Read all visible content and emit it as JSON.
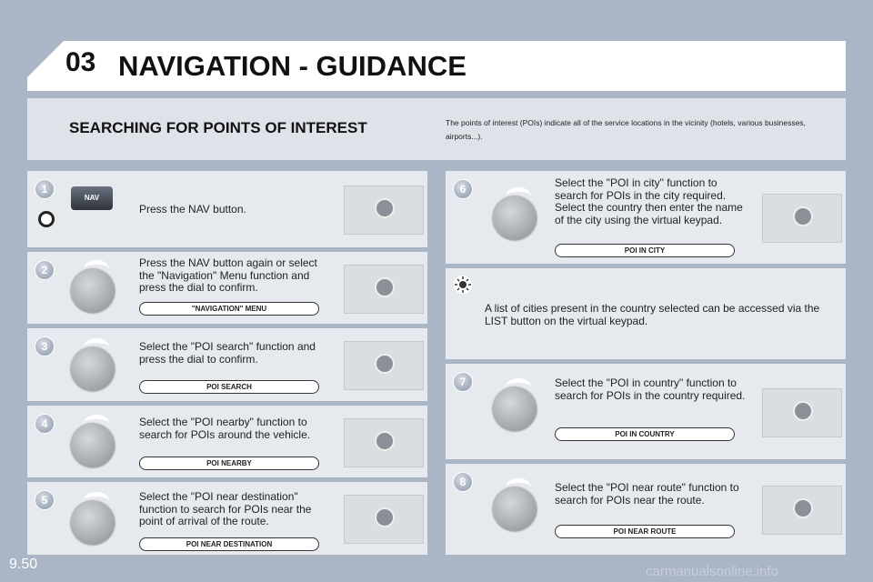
{
  "header": {
    "chapter": "03",
    "title": "NAVIGATION - GUIDANCE"
  },
  "section": {
    "title": "SEARCHING FOR POINTS OF INTEREST",
    "intro": "The points of interest (POIs) indicate all of the service locations in the vicinity (hotels, various businesses, airports...)."
  },
  "steps": [
    {
      "number": "1",
      "text": "Press the NAV button.",
      "button": "NAV"
    },
    {
      "number": "2",
      "text": "Press the NAV button again or select the \"Navigation\" Menu function and press the dial to confirm.",
      "label": "\"NAVIGATION\" MENU"
    },
    {
      "number": "3",
      "text": "Select the \"POI search\" function and press the dial to confirm.",
      "label": "POI SEARCH"
    },
    {
      "number": "4",
      "text": "Select the \"POI nearby\" function to search for POIs around the vehicle.",
      "label": "POI NEARBY"
    },
    {
      "number": "5",
      "text": "Select the \"POI near destination\" function to search for POIs near the point of arrival of the route.",
      "label": "POI NEAR DESTINATION"
    },
    {
      "number": "6",
      "text": "Select the \"POI in city\" function to search for POIs in the city required. Select the country then enter the name of the city using the virtual keypad.",
      "label": "POI IN CITY"
    },
    {
      "number": "7",
      "text": "Select the \"POI in country\" function to search for POIs in the country required.",
      "label": "POI IN COUNTRY"
    },
    {
      "number": "8",
      "text": "Select the \"POI near route\" function to search for POIs near the route.",
      "label": "POI NEAR ROUTE"
    }
  ],
  "tip": {
    "text": "A list of cities present in the country selected can be accessed via the LIST button on the virtual keypad."
  },
  "footer": {
    "page": "9.50",
    "watermark": "carmanualsonline.info"
  }
}
